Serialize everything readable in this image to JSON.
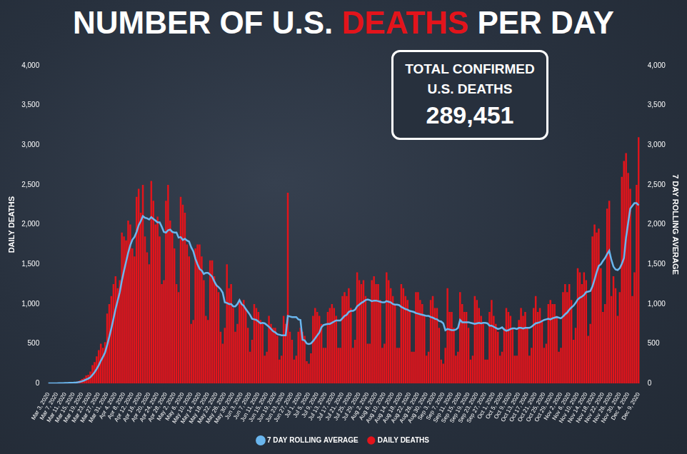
{
  "chart_data": {
    "type": "bar",
    "title": "NUMBER OF U.S. DEATHS PER DAY",
    "title_highlight": "DEATHS",
    "annotations": [
      {
        "lines": [
          "TOTAL CONFIRMED",
          "U.S. DEATHS",
          "289,451"
        ]
      }
    ],
    "y_label": "DAILY DEATHS",
    "y2_label": "7 DAY ROLLING AVERAGE",
    "ylim": [
      0,
      4000
    ],
    "yticks": [
      0,
      500,
      {
        "value": 1000,
        "label": "1,000"
      },
      {
        "value": 1500,
        "label": "1,500"
      },
      {
        "value": 2000,
        "label": "2,000"
      },
      {
        "value": 2500,
        "label": "2,500"
      },
      {
        "value": 3000,
        "label": "3,000"
      },
      {
        "value": 3500,
        "label": "3,500"
      },
      {
        "value": 4000,
        "label": "4,000"
      }
    ],
    "y2lim": [
      0,
      4000
    ],
    "y2ticks": [
      0,
      500,
      {
        "value": 1000,
        "label": "1,000"
      },
      {
        "value": 1500,
        "label": "1,500"
      },
      {
        "value": 2000,
        "label": "2,000"
      },
      {
        "value": 2500,
        "label": "2,500"
      },
      {
        "value": 3000,
        "label": "3,000"
      },
      {
        "value": 3500,
        "label": "3,500"
      },
      {
        "value": 4000,
        "label": "4,000"
      }
    ],
    "grid": false,
    "legend": "bottom",
    "categories": [
      "Mar 3, 2020",
      null,
      null,
      null,
      "Mar 7, 2020",
      null,
      null,
      null,
      "Mar 11, 2020",
      null,
      null,
      null,
      "Mar 15, 2020",
      null,
      null,
      null,
      "Mar 19, 2020",
      null,
      null,
      null,
      "Mar 23, 2020",
      null,
      null,
      null,
      "Mar 27, 2020",
      null,
      null,
      null,
      "Mar 31, 2020",
      null,
      null,
      null,
      "Apr 4, 2020",
      null,
      null,
      null,
      "Apr 8, 2020",
      null,
      null,
      null,
      "Apr 12, 2020",
      null,
      null,
      null,
      "Apr 16, 2020",
      null,
      null,
      null,
      "Apr 20, 2020",
      null,
      null,
      null,
      "Apr 24, 2020",
      null,
      null,
      null,
      "Apr 28, 2020",
      null,
      null,
      null,
      "May 2, 2020",
      null,
      null,
      null,
      "May 6, 2020",
      null,
      null,
      null,
      "May 10, 2020",
      null,
      null,
      null,
      "May 14, 2020",
      null,
      null,
      null,
      "May 18, 2020",
      null,
      null,
      null,
      "May 22, 2020",
      null,
      null,
      null,
      "May 26, 2020",
      null,
      null,
      null,
      "May 30, 2020",
      null,
      null,
      null,
      "Jun 3, 2020",
      null,
      null,
      null,
      "Jun 7, 2020",
      null,
      null,
      null,
      "Jun 11, 2020",
      null,
      null,
      null,
      "Jun 15, 2020",
      null,
      null,
      null,
      "Jun 19, 2020",
      null,
      null,
      null,
      "Jun 23, 2020",
      null,
      null,
      null,
      "Jun 27, 2020",
      null,
      null,
      null,
      "Jul 1, 2020",
      null,
      null,
      null,
      "Jul 5, 2020",
      null,
      null,
      null,
      "Jul 9, 2020",
      null,
      null,
      null,
      "Jul 13, 2020",
      null,
      null,
      null,
      "Jul 17, 2020",
      null,
      null,
      null,
      "Jul 21, 2020",
      null,
      null,
      null,
      "Jul 25, 2020",
      null,
      null,
      null,
      "Jul 29, 2020",
      null,
      null,
      null,
      "Aug 2, 2020",
      null,
      null,
      null,
      "Aug 6, 2020",
      null,
      null,
      null,
      "Aug 10, 2020",
      null,
      null,
      null,
      "Aug 14, 2020",
      null,
      null,
      null,
      "Aug 18, 2020",
      null,
      null,
      null,
      "Aug 22, 2020",
      null,
      null,
      null,
      "Aug 26, 2020",
      null,
      null,
      null,
      "Aug 30, 2020",
      null,
      null,
      null,
      "Sep 3, 2020",
      null,
      null,
      null,
      "Sep 7, 2020",
      null,
      null,
      null,
      "Sep 11, 2020",
      null,
      null,
      null,
      "Sep 15, 2020",
      null,
      null,
      null,
      "Sep 19, 2020",
      null,
      null,
      null,
      "Sep 23, 2020",
      null,
      null,
      null,
      "Sep 27, 2020",
      null,
      null,
      null,
      "Oct 1, 2020",
      null,
      null,
      null,
      "Oct 5, 2020",
      null,
      null,
      null,
      "Oct 9, 2020",
      null,
      null,
      null,
      "Oct 13, 2020",
      null,
      null,
      null,
      "Oct 17, 2020",
      null,
      null,
      null,
      "Oct 21, 2020",
      null,
      null,
      null,
      "Oct 25, 2020",
      null,
      null,
      null,
      "Oct 29, 2020",
      null,
      null,
      null,
      "Nov 2, 2020",
      null,
      null,
      null,
      "Nov 6, 2020",
      null,
      null,
      null,
      "Nov 10, 2020",
      null,
      null,
      null,
      "Nov 14, 2020",
      null,
      null,
      null,
      "Nov 18, 2020",
      null,
      null,
      null,
      "Nov 22, 2020",
      null,
      null,
      null,
      "Nov 26, 2020",
      null,
      null,
      null,
      "Nov 30, 2020",
      null,
      null,
      null,
      "Dec 4, 2020",
      null,
      null,
      null,
      null,
      "Dec 9, 2020"
    ],
    "series": [
      {
        "name": "DAILY DEATHS",
        "type": "bar",
        "color": "#e3141b",
        "values": [
          2,
          3,
          3,
          4,
          5,
          4,
          5,
          8,
          10,
          9,
          12,
          14,
          12,
          18,
          25,
          38,
          55,
          70,
          100,
          110,
          150,
          230,
          270,
          340,
          420,
          500,
          450,
          520,
          880,
          1000,
          1100,
          1250,
          1350,
          1200,
          1300,
          1900,
          1850,
          1800,
          2050,
          2000,
          1700,
          1600,
          2350,
          2450,
          2150,
          2500,
          1850,
          1650,
          1500,
          2550,
          2300,
          2000,
          2100,
          1850,
          1250,
          1300,
          2300,
          2500,
          2050,
          1900,
          1700,
          1250,
          1150,
          2350,
          2250,
          2150,
          1750,
          1600,
          750,
          800,
          1700,
          1750,
          1750,
          1600,
          1300,
          850,
          800,
          1550,
          1550,
          1350,
          1250,
          1150,
          650,
          500,
          700,
          1500,
          1200,
          1250,
          950,
          650,
          750,
          1050,
          1000,
          1050,
          950,
          700,
          400,
          550,
          1000,
          950,
          900,
          800,
          750,
          350,
          400,
          850,
          750,
          700,
          700,
          600,
          300,
          350,
          850,
          750,
          2400,
          650,
          550,
          300,
          350,
          650,
          700,
          650,
          600,
          280,
          250,
          380,
          850,
          950,
          900,
          850,
          750,
          450,
          450,
          900,
          950,
          1000,
          950,
          850,
          450,
          450,
          1100,
          1150,
          1100,
          1200,
          950,
          450,
          550,
          1400,
          1300,
          1250,
          1300,
          1100,
          500,
          500,
          1300,
          1350,
          1250,
          1250,
          1050,
          450,
          500,
          1400,
          1300,
          1200,
          1100,
          1000,
          450,
          450,
          1250,
          1200,
          1100,
          1050,
          900,
          400,
          400,
          1150,
          1150,
          1050,
          1000,
          850,
          350,
          400,
          1050,
          1100,
          950,
          950,
          700,
          300,
          250,
          450,
          1200,
          900,
          900,
          700,
          350,
          400,
          1150,
          1000,
          900,
          900,
          700,
          300,
          350,
          1100,
          1050,
          950,
          850,
          750,
          300,
          300,
          900,
          1050,
          850,
          750,
          650,
          350,
          400,
          700,
          950,
          900,
          850,
          700,
          350,
          350,
          800,
          950,
          850,
          900,
          700,
          350,
          450,
          950,
          1100,
          900,
          950,
          800,
          450,
          500,
          1000,
          1050,
          1000,
          1000,
          850,
          400,
          450,
          1150,
          1250,
          1150,
          1250,
          1050,
          550,
          700,
          1450,
          1400,
          1250,
          1400,
          1300,
          600,
          750,
          1850,
          2000,
          1900,
          1950,
          1450,
          900,
          1000,
          2200,
          2300,
          1100,
          1350,
          1200,
          850,
          1150,
          2600,
          2800,
          2900,
          2650,
          2450,
          1100,
          1400,
          2500,
          3100
        ]
      },
      {
        "name": "7 DAY ROLLING AVERAGE",
        "type": "line",
        "color": "#6ab6ee",
        "axis": "y2",
        "values": [
          1,
          2,
          2,
          3,
          3,
          4,
          4,
          5,
          6,
          7,
          8,
          9,
          10,
          12,
          15,
          20,
          28,
          38,
          50,
          62,
          78,
          108,
          142,
          183,
          230,
          287,
          335,
          390,
          483,
          587,
          695,
          814,
          936,
          1042,
          1150,
          1296,
          1418,
          1532,
          1646,
          1739,
          1810,
          1843,
          1907,
          1993,
          2043,
          2107,
          2086,
          2079,
          2064,
          2093,
          2071,
          2050,
          2029,
          2029,
          1971,
          1907,
          1900,
          1929,
          1936,
          1907,
          1900,
          1900,
          1836,
          1843,
          1807,
          1821,
          1800,
          1786,
          1714,
          1664,
          1571,
          1500,
          1443,
          1421,
          1379,
          1393,
          1393,
          1371,
          1343,
          1286,
          1236,
          1214,
          1186,
          1143,
          1021,
          1014,
          1000,
          1000,
          971,
          971,
          1000,
          1050,
          1000,
          979,
          936,
          900,
          864,
          814,
          807,
          800,
          779,
          757,
          764,
          757,
          736,
          714,
          686,
          657,
          643,
          621,
          614,
          607,
          607,
          607,
          850,
          843,
          836,
          836,
          836,
          807,
          800,
          550,
          543,
          504,
          497,
          504,
          533,
          569,
          605,
          641,
          707,
          736,
          743,
          750,
          750,
          764,
          779,
          793,
          793,
          793,
          821,
          850,
          864,
          900,
          914,
          914,
          929,
          971,
          993,
          1014,
          1029,
          1050,
          1057,
          1050,
          1036,
          1043,
          1043,
          1036,
          1029,
          1021,
          1021,
          1036,
          1029,
          1021,
          1000,
          993,
          993,
          986,
          964,
          950,
          936,
          929,
          914,
          907,
          900,
          886,
          879,
          871,
          864,
          857,
          850,
          850,
          836,
          829,
          814,
          807,
          786,
          779,
          757,
          671,
          686,
          679,
          671,
          671,
          679,
          700,
          800,
          771,
          771,
          771,
          771,
          764,
          757,
          750,
          757,
          764,
          757,
          764,
          764,
          757,
          728,
          728,
          714,
          700,
          686,
          693,
          707,
          679,
          664,
          671,
          686,
          693,
          693,
          686,
          700,
          700,
          693,
          700,
          700,
          700,
          714,
          736,
          757,
          764,
          771,
          786,
          800,
          807,
          814,
          807,
          821,
          829,
          836,
          829,
          821,
          843,
          871,
          893,
          929,
          957,
          979,
          1014,
          1057,
          1079,
          1093,
          1114,
          1150,
          1157,
          1164,
          1221,
          1307,
          1400,
          1479,
          1500,
          1543,
          1579,
          1629,
          1671,
          1557,
          1471,
          1436,
          1428,
          1450,
          1507,
          1578,
          1835,
          2021,
          2200,
          2236,
          2271,
          2271,
          2243
        ]
      }
    ]
  }
}
